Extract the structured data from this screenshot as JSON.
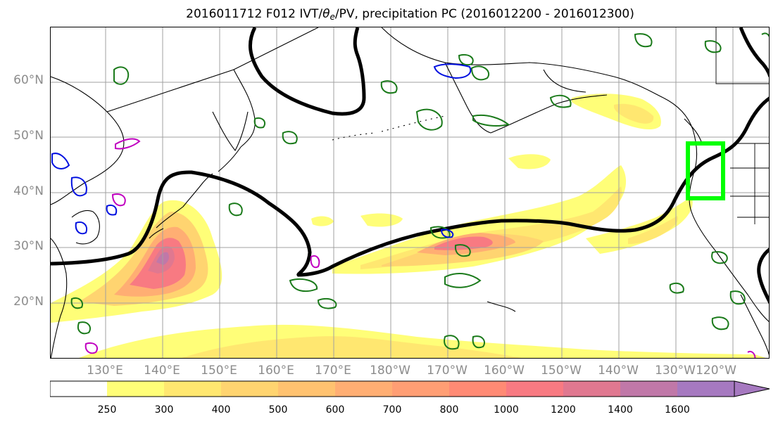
{
  "title": {
    "prefix": "2016011712 F012 IVT/",
    "theta": "θ",
    "theta_sub": "e",
    "suffix": "/PV, precipitation PC (2016012200 - 2016012300)"
  },
  "lat_labels": [
    "60°N",
    "50°N",
    "40°N",
    "30°N",
    "20°N"
  ],
  "lon_labels": [
    "130°E",
    "140°E",
    "150°E",
    "160°E",
    "170°E",
    "180°W",
    "170°W",
    "160°W",
    "150°W",
    "140°W",
    "130°W",
    "120°W"
  ],
  "colorbar": {
    "ticks": [
      "250",
      "300",
      "400",
      "500",
      "600",
      "700",
      "800",
      "1000",
      "1200",
      "1400",
      "1600"
    ],
    "colors": [
      "#ffffff",
      "#fffe78",
      "#ffe770",
      "#ffd470",
      "#ffc270",
      "#ffae73",
      "#ff9e74",
      "#ff8a74",
      "#f87a82",
      "#e07890",
      "#c078a8",
      "#a679c0"
    ]
  },
  "map": {
    "projection": "cylindrical",
    "lon_range": [
      "120°E",
      "125°W"
    ],
    "lat_range": [
      "10°N",
      "70°N"
    ],
    "grid": true,
    "contours": {
      "black": "θe contour",
      "green": "PV contours",
      "blue": "PV contours (negative)",
      "magenta": "PV contours (other)"
    },
    "highlight_box_color": "#00ff00"
  }
}
